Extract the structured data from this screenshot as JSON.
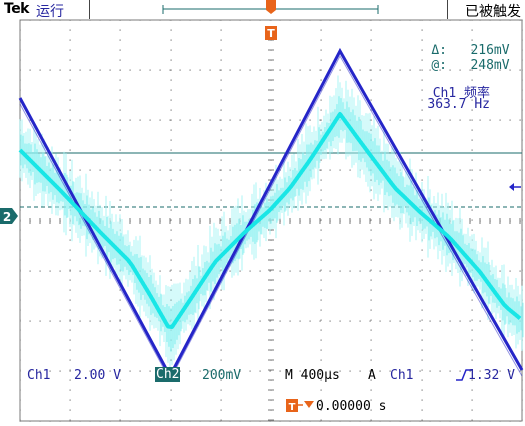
{
  "status_bar": {
    "brand": "Tek",
    "run_state": "运行",
    "trigger_status": "已被触发"
  },
  "markers": {
    "trigger_marker": "T",
    "ch2_marker": "2"
  },
  "cursor_measure": {
    "delta_label": "Δ:",
    "delta_value": "216mV",
    "at_label": "@:",
    "at_value": "248mV"
  },
  "frequency_readout": {
    "label": "Ch1 频率",
    "value": "363.7 Hz"
  },
  "channel_settings": {
    "ch1_label": "Ch1",
    "ch1_scale": "2.00 V",
    "ch2_label": "Ch2",
    "ch2_scale": "200mV",
    "timebase": "M 400µs",
    "trigger_mode": "A",
    "trigger_source": "Ch1",
    "trigger_level": "1.32 V"
  },
  "trigger_position": {
    "value": "0.00000 s"
  },
  "colors": {
    "ch1_trace": "#2525c8",
    "ch2_trace": "#19e6e6",
    "ch2_glow": "#a8f4f4",
    "grid": "#7a7a7a",
    "cursor_line": "#1a6b6b",
    "trigger_orange": "#e8641a"
  }
}
